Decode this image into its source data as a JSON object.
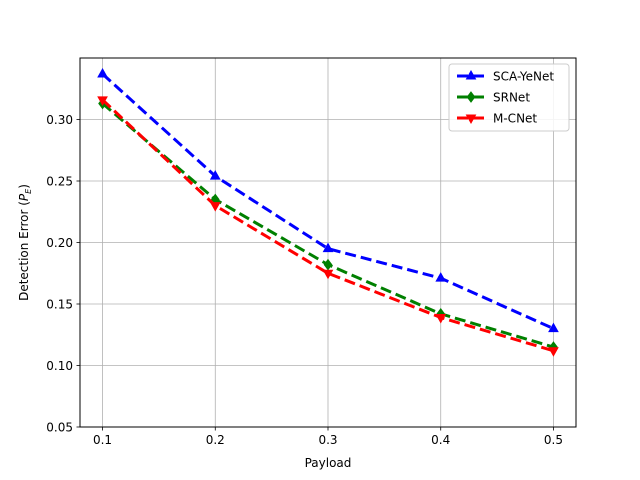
{
  "chart_data": {
    "type": "line",
    "title": "",
    "xlabel": "Payload",
    "ylabel": "Detection Error (",
    "ylabel_math": "P",
    "ylabel_sub": "E",
    "ylabel_close": ")",
    "x": [
      0.1,
      0.2,
      0.3,
      0.4,
      0.5
    ],
    "xlim": [
      0.08,
      0.52
    ],
    "ylim": [
      0.05,
      0.35
    ],
    "xticks": [
      "0.1",
      "0.2",
      "0.3",
      "0.4",
      "0.5"
    ],
    "yticks": [
      "0.05",
      "0.10",
      "0.15",
      "0.20",
      "0.25",
      "0.30"
    ],
    "grid": true,
    "legend_position": "top-right",
    "series": [
      {
        "name": "SCA-YeNet",
        "values": [
          0.337,
          0.254,
          0.195,
          0.171,
          0.13
        ],
        "color": "#0000ff",
        "marker": "triangle-up"
      },
      {
        "name": "SRNet",
        "values": [
          0.313,
          0.235,
          0.182,
          0.142,
          0.115
        ],
        "color": "#008000",
        "marker": "diamond"
      },
      {
        "name": "M-CNet",
        "values": [
          0.316,
          0.23,
          0.175,
          0.139,
          0.112
        ],
        "color": "#ff0000",
        "marker": "triangle-down"
      }
    ]
  }
}
